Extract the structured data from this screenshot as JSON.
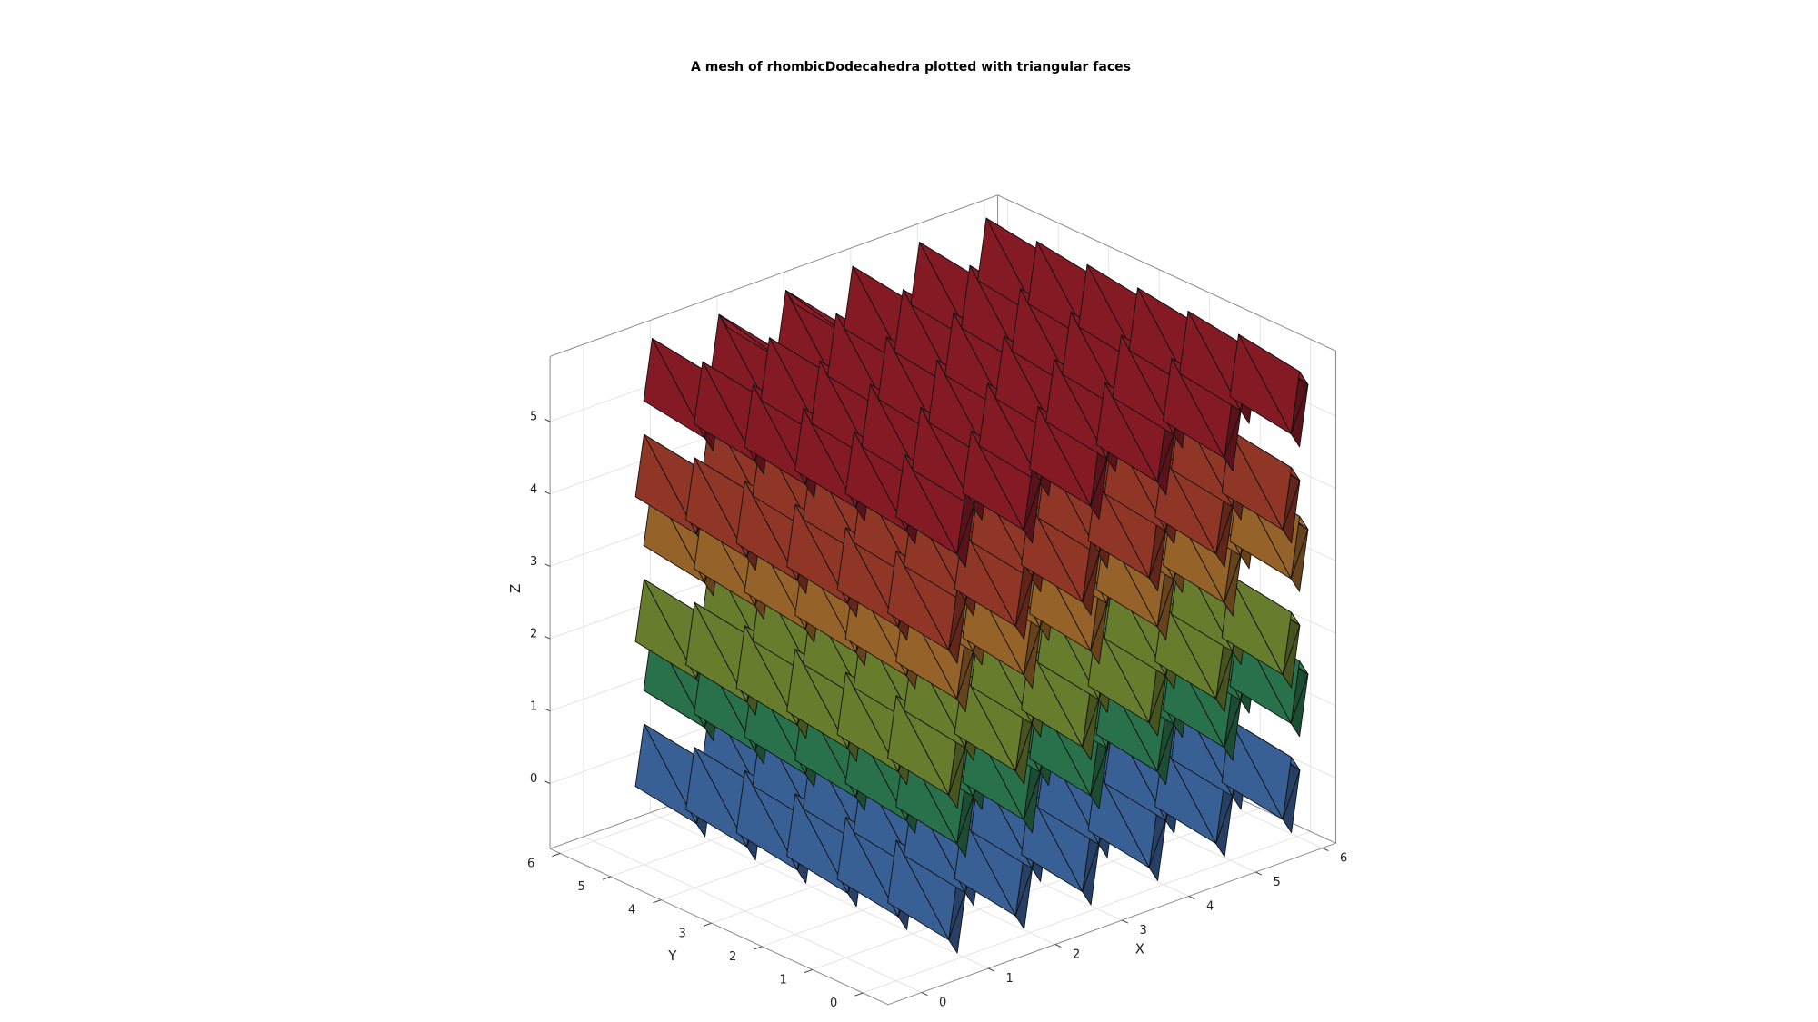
{
  "chart_data": {
    "type": "scatter",
    "title": "A mesh of rhombicDodecahedra plotted with triangular faces",
    "xlabel": "X",
    "ylabel": "Y",
    "zlabel": "Z",
    "xlim": [
      -0.5,
      6.2
    ],
    "ylim": [
      -0.5,
      6.2
    ],
    "zlim": [
      -0.9,
      5.9
    ],
    "xticks": [
      "0",
      "1",
      "2",
      "3",
      "4",
      "5",
      "6"
    ],
    "yticks": [
      "0",
      "1",
      "2",
      "3",
      "4",
      "5",
      "6"
    ],
    "zticks": [
      "0",
      "1",
      "2",
      "3",
      "4",
      "5"
    ],
    "grid": true,
    "view": "3-D isometric",
    "colormap": "turbo (blue to red along Z)",
    "polyhedron": "rhombic dodecahedron, triangulated faces",
    "lattice": {
      "layers_z": [
        0,
        1,
        2,
        3,
        4,
        5
      ],
      "even_layer_xy": [
        0,
        1,
        2,
        3,
        4,
        5
      ],
      "odd_layer_xy": [
        0.5,
        1.5,
        2.5,
        3.5,
        4.5,
        5.5
      ]
    },
    "layer_colors": [
      "#5d9bf2",
      "#43b87a",
      "#a8c94a",
      "#f2a043",
      "#e8573f",
      "#d42a3b"
    ]
  }
}
